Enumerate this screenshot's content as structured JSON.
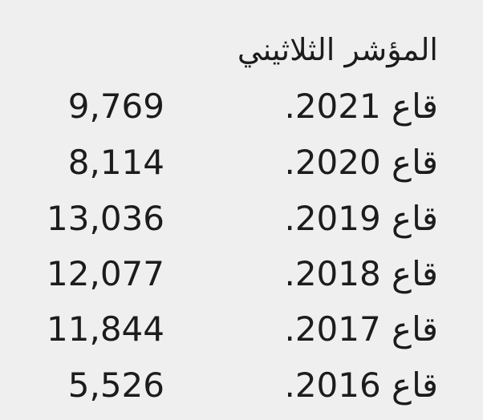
{
  "title": "المؤشر الثلاثيني",
  "rows": [
    {
      "label": "قاع 2021.",
      "value": "9,769"
    },
    {
      "label": "قاع 2020.",
      "value": "8,114"
    },
    {
      "label": "قاع 2019.",
      "value": "13,036"
    },
    {
      "label": "قاع 2018.",
      "value": "12,077"
    },
    {
      "label": "قاع 2017.",
      "value": "11,844"
    },
    {
      "label": "قاع 2016.",
      "value": "5,526"
    }
  ]
}
